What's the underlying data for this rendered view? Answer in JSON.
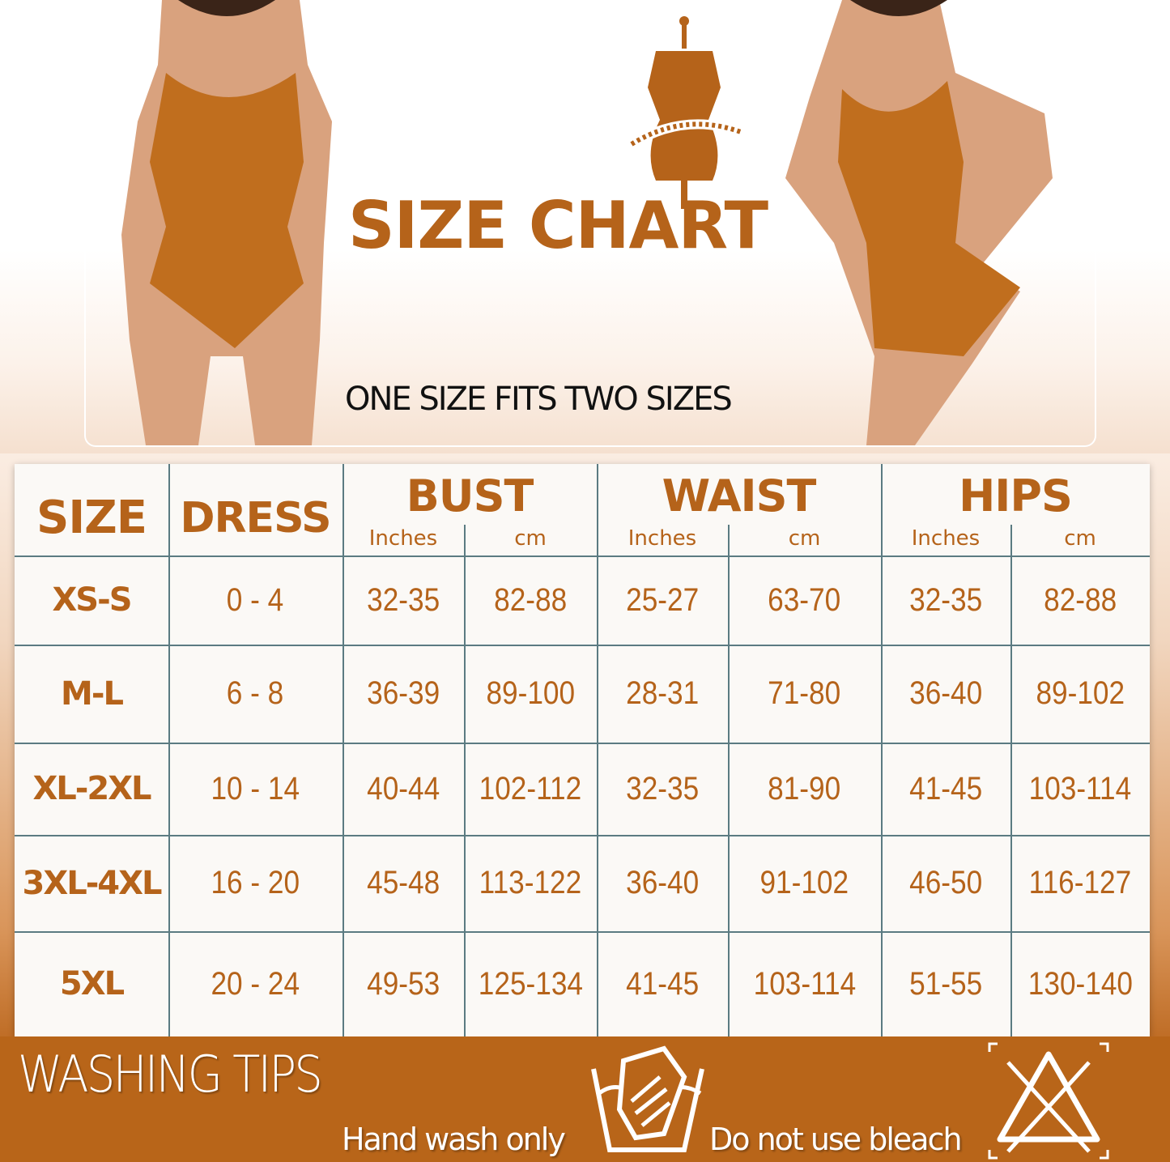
{
  "header": {
    "title": "SIZE CHART",
    "subtitle": "ONE SIZE FITS TWO SIZES"
  },
  "colors": {
    "accent": "#b5631a",
    "banner": "#b86519",
    "table_bg": "#fbf9f6",
    "grid": "#5b7b82"
  },
  "table": {
    "headers": {
      "size": "SIZE",
      "dress": "DRESS",
      "bust": "BUST",
      "waist": "WAIST",
      "hips": "HIPS"
    },
    "units": [
      "Inches",
      "cm",
      "Inches",
      "cm",
      "Inches",
      "cm"
    ],
    "rows": [
      [
        "XS-S",
        "0 - 4",
        "32-35",
        "82-88",
        "25-27",
        "63-70",
        "32-35",
        "82-88"
      ],
      [
        "M-L",
        "6 - 8",
        "36-39",
        "89-100",
        "28-31",
        "71-80",
        "36-40",
        "89-102"
      ],
      [
        "XL-2XL",
        "10 - 14",
        "40-44",
        "102-112",
        "32-35",
        "81-90",
        "41-45",
        "103-114"
      ],
      [
        "3XL-4XL",
        "16 - 20",
        "45-48",
        "113-122",
        "36-40",
        "91-102",
        "46-50",
        "116-127"
      ],
      [
        "5XL",
        "20 - 24",
        "49-53",
        "125-134",
        "41-45",
        "103-114",
        "51-55",
        "130-140"
      ]
    ]
  },
  "washing": {
    "title": "WASHING TIPS",
    "tips": [
      {
        "label": "Hand wash only",
        "icon": "hand-wash-icon"
      },
      {
        "label": "Do not use bleach",
        "icon": "no-bleach-icon"
      }
    ]
  }
}
